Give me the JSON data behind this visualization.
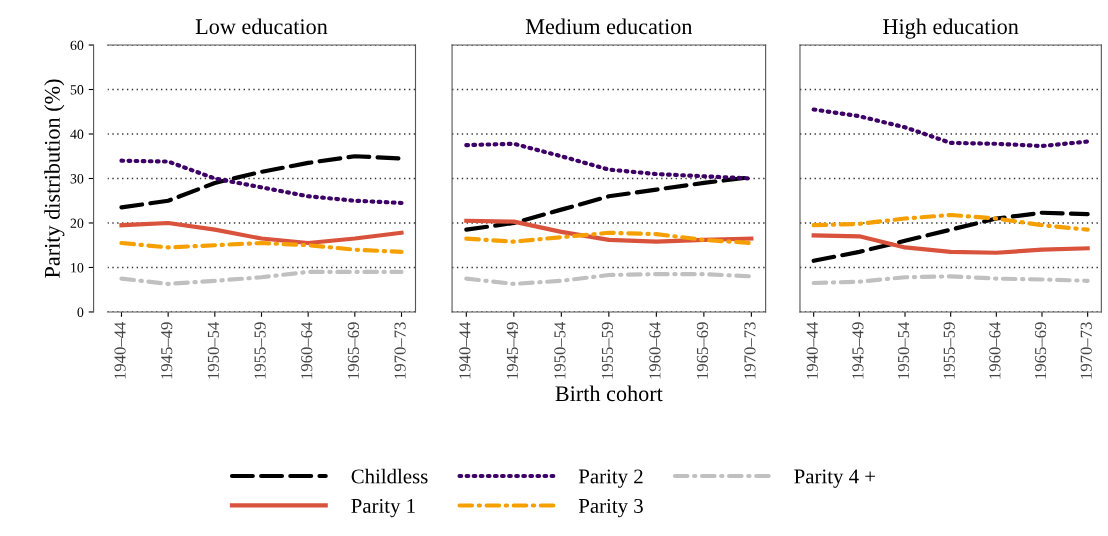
{
  "chart_data": [
    {
      "type": "line",
      "title": "Low education",
      "ylabel": "Parity distribution (%)",
      "categories": [
        "1940–44",
        "1945–49",
        "1950–54",
        "1955–59",
        "1960–64",
        "1965–69",
        "1970–73"
      ],
      "ylim": [
        0,
        60
      ],
      "yticks": [
        0,
        10,
        20,
        30,
        40,
        50,
        60
      ],
      "grid": "y",
      "legend": "bottom",
      "series": [
        {
          "name": "Childless",
          "color": "#000000",
          "line_style": "dashed",
          "values": [
            23.5,
            25,
            29,
            31.5,
            33.5,
            35,
            34.5
          ]
        },
        {
          "name": "Parity 1",
          "color": "#d9533c",
          "line_style": "solid",
          "values": [
            19.5,
            20,
            18.5,
            16.5,
            15.5,
            16.5,
            17.8
          ]
        },
        {
          "name": "Parity 2",
          "color": "#3d0066",
          "line_style": "dotted",
          "values": [
            34,
            33.8,
            30,
            28,
            26,
            25,
            24.5
          ]
        },
        {
          "name": "Parity 3",
          "color": "#f5a000",
          "line_style": "dashdot",
          "values": [
            15.5,
            14.5,
            15,
            15.5,
            15,
            14,
            13.5
          ]
        },
        {
          "name": "Parity 4 +",
          "color": "#c0c0c0",
          "line_style": "dashdot",
          "values": [
            7.5,
            6.3,
            7,
            7.8,
            9,
            9,
            9
          ]
        }
      ]
    },
    {
      "type": "line",
      "title": "Medium education",
      "xlabel": "Birth cohort",
      "categories": [
        "1940–44",
        "1945–49",
        "1950–54",
        "1955–59",
        "1960–64",
        "1965–69",
        "1970–73"
      ],
      "ylim": [
        0,
        60
      ],
      "yticks": [
        0,
        10,
        20,
        30,
        40,
        50,
        60
      ],
      "grid": "y",
      "tick_labels": "x",
      "series": [
        {
          "color": "#000000",
          "line_style": "dashed",
          "values": [
            18.5,
            20,
            23,
            26,
            27.5,
            29,
            30.3
          ]
        },
        {
          "color": "#d9533c",
          "line_style": "solid",
          "values": [
            20.5,
            20.3,
            18,
            16.2,
            15.8,
            16.2,
            16.5
          ]
        },
        {
          "color": "#3d0066",
          "line_style": "dotted",
          "values": [
            37.5,
            37.8,
            35,
            32,
            31,
            30.5,
            30
          ]
        },
        {
          "color": "#f5a000",
          "line_style": "dashdot",
          "values": [
            16.5,
            15.8,
            16.8,
            17.8,
            17.5,
            16.2,
            15.5
          ]
        },
        {
          "color": "#c0c0c0",
          "line_style": "dashdot",
          "values": [
            7.5,
            6.3,
            7,
            8.3,
            8.5,
            8.5,
            8
          ]
        }
      ]
    },
    {
      "type": "line",
      "title": "High education",
      "categories": [
        "1940–44",
        "1945–49",
        "1950–54",
        "1955–59",
        "1960–64",
        "1965–69",
        "1970–73"
      ],
      "ylim": [
        0,
        60
      ],
      "yticks": [
        0,
        10,
        20,
        30,
        40,
        50,
        60
      ],
      "grid": "y",
      "tick_labels": "x",
      "series": [
        {
          "color": "#000000",
          "line_style": "dashed",
          "values": [
            11.5,
            13.5,
            16,
            18.5,
            21,
            22.3,
            22
          ]
        },
        {
          "color": "#d9533c",
          "line_style": "solid",
          "values": [
            17.2,
            17,
            14.5,
            13.5,
            13.3,
            14,
            14.3
          ]
        },
        {
          "color": "#3d0066",
          "line_style": "dotted",
          "values": [
            45.5,
            44,
            41.5,
            38,
            37.8,
            37.3,
            38.3
          ]
        },
        {
          "color": "#f5a000",
          "line_style": "dashdot",
          "values": [
            19.5,
            19.8,
            21,
            21.8,
            21,
            19.5,
            18.5
          ]
        },
        {
          "color": "#c0c0c0",
          "line_style": "dashdot",
          "values": [
            6.5,
            6.8,
            7.8,
            8,
            7.5,
            7.3,
            7
          ]
        }
      ]
    }
  ]
}
